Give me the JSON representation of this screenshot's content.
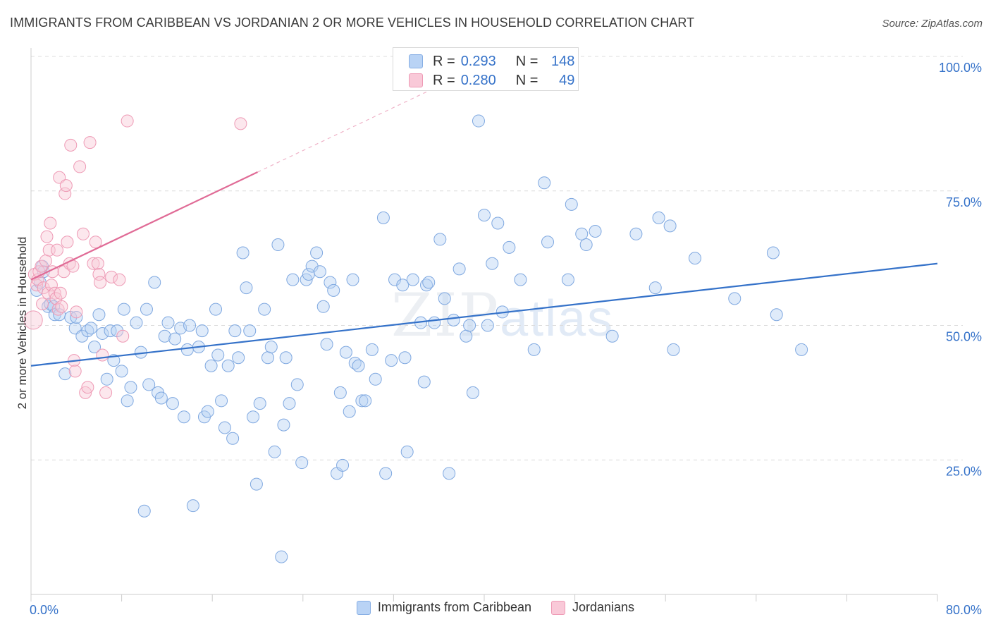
{
  "header": {
    "title": "IMMIGRANTS FROM CARIBBEAN VS JORDANIAN 2 OR MORE VEHICLES IN HOUSEHOLD CORRELATION CHART",
    "source": "Source: ZipAtlas.com"
  },
  "watermark": {
    "zip": "ZIP",
    "atlas": "atlas"
  },
  "stats": {
    "rows": [
      {
        "r_label": "R =",
        "r_value": "0.293",
        "n_label": "N =",
        "n_value": "148",
        "color": "#b9d3f5"
      },
      {
        "r_label": "R =",
        "r_value": "0.280",
        "n_label": "N =",
        "n_value": "49",
        "color": "#f9c9d8"
      }
    ]
  },
  "legend": {
    "blue_label": "Immigrants from Caribbean",
    "pink_label": "Jordanians"
  },
  "chart_data": {
    "type": "scatter",
    "title": "IMMIGRANTS FROM CARIBBEAN VS JORDANIAN 2 OR MORE VEHICLES IN HOUSEHOLD CORRELATION CHART",
    "xlabel": "",
    "ylabel": "2 or more Vehicles in Household",
    "xlim": [
      0,
      80
    ],
    "ylim": [
      0,
      100
    ],
    "x_tick_labels": [
      "0.0%",
      "80.0%"
    ],
    "y_tick_values": [
      25,
      50,
      75,
      100
    ],
    "y_tick_labels": [
      "25.0%",
      "50.0%",
      "75.0%",
      "100.0%"
    ],
    "grid": true,
    "legend_position": "bottom",
    "colors": {
      "blue": "#3572c9",
      "blue_fill": "#b9d3f5",
      "pink": "#e06b96",
      "pink_fill": "#f9c9d8",
      "axis_text": "#3572c9"
    },
    "series": [
      {
        "name": "Immigrants from Caribbean",
        "color": "#3572c9",
        "trend": {
          "x": [
            0,
            80
          ],
          "y": [
            42.5,
            61.5
          ]
        },
        "points": [
          [
            0.5,
            56.5
          ],
          [
            0.8,
            58
          ],
          [
            1,
            61
          ],
          [
            1.1,
            60
          ],
          [
            1.5,
            53.5
          ],
          [
            1.7,
            54
          ],
          [
            2,
            53.5
          ],
          [
            2.1,
            52
          ],
          [
            2.5,
            52
          ],
          [
            3,
            41
          ],
          [
            3.5,
            51.5
          ],
          [
            3.9,
            49.5
          ],
          [
            4,
            51.5
          ],
          [
            4.5,
            48
          ],
          [
            5,
            49
          ],
          [
            5.3,
            49.5
          ],
          [
            5.6,
            46
          ],
          [
            6,
            52
          ],
          [
            6.3,
            48.5
          ],
          [
            6.7,
            40
          ],
          [
            7,
            49
          ],
          [
            7.3,
            43.5
          ],
          [
            7.6,
            49
          ],
          [
            8,
            41.5
          ],
          [
            8.2,
            53
          ],
          [
            8.5,
            36
          ],
          [
            8.8,
            38.5
          ],
          [
            9.3,
            50.5
          ],
          [
            9.7,
            45
          ],
          [
            10,
            15.5
          ],
          [
            10.2,
            53
          ],
          [
            10.4,
            39
          ],
          [
            10.9,
            58
          ],
          [
            11.2,
            37.5
          ],
          [
            11.5,
            36.5
          ],
          [
            11.8,
            48
          ],
          [
            12.1,
            50.5
          ],
          [
            12.5,
            35.5
          ],
          [
            12.7,
            47.5
          ],
          [
            13.2,
            49.5
          ],
          [
            13.5,
            33
          ],
          [
            13.8,
            45.5
          ],
          [
            14,
            50
          ],
          [
            14.3,
            16.5
          ],
          [
            14.8,
            46
          ],
          [
            15.1,
            49
          ],
          [
            15.3,
            33
          ],
          [
            15.6,
            34
          ],
          [
            15.9,
            42.5
          ],
          [
            16.3,
            53
          ],
          [
            16.5,
            44.5
          ],
          [
            16.8,
            36
          ],
          [
            17.1,
            31
          ],
          [
            17.4,
            42.5
          ],
          [
            17.8,
            29
          ],
          [
            18,
            49
          ],
          [
            18.3,
            44
          ],
          [
            18.7,
            63.5
          ],
          [
            19,
            57
          ],
          [
            19.3,
            49
          ],
          [
            19.6,
            33
          ],
          [
            19.9,
            20.5
          ],
          [
            20.2,
            35.5
          ],
          [
            20.6,
            53
          ],
          [
            20.9,
            44
          ],
          [
            21.2,
            46
          ],
          [
            21.5,
            26.5
          ],
          [
            21.8,
            65
          ],
          [
            22.1,
            7
          ],
          [
            22.3,
            31.5
          ],
          [
            22.5,
            44
          ],
          [
            22.8,
            35.5
          ],
          [
            23.1,
            58.5
          ],
          [
            23.5,
            39
          ],
          [
            23.9,
            24.5
          ],
          [
            24.3,
            58.5
          ],
          [
            24.5,
            59.5
          ],
          [
            24.8,
            61
          ],
          [
            25.2,
            63.5
          ],
          [
            25.5,
            60
          ],
          [
            25.8,
            53.5
          ],
          [
            26.1,
            46.5
          ],
          [
            26.4,
            58
          ],
          [
            26.7,
            56.5
          ],
          [
            27,
            22.5
          ],
          [
            27.3,
            37.5
          ],
          [
            27.5,
            24
          ],
          [
            27.8,
            45
          ],
          [
            28.1,
            34
          ],
          [
            28.4,
            58.5
          ],
          [
            28.6,
            43
          ],
          [
            28.9,
            42.5
          ],
          [
            29.2,
            36
          ],
          [
            29.5,
            36
          ],
          [
            30.1,
            45.5
          ],
          [
            30.4,
            40
          ],
          [
            31.1,
            70
          ],
          [
            31.3,
            22.5
          ],
          [
            31.8,
            43.5
          ],
          [
            32.1,
            58.5
          ],
          [
            32.8,
            57.5
          ],
          [
            33,
            44
          ],
          [
            33.2,
            26.5
          ],
          [
            33.7,
            58.5
          ],
          [
            34.4,
            50.5
          ],
          [
            34.7,
            39.5
          ],
          [
            34.9,
            57.5
          ],
          [
            35.1,
            58
          ],
          [
            35.6,
            50.5
          ],
          [
            36.1,
            66
          ],
          [
            36.5,
            55
          ],
          [
            36.9,
            22.5
          ],
          [
            37.3,
            51
          ],
          [
            37.8,
            60.5
          ],
          [
            38.4,
            48
          ],
          [
            38.7,
            50
          ],
          [
            39,
            37.5
          ],
          [
            39.5,
            88
          ],
          [
            40,
            70.5
          ],
          [
            40.3,
            50
          ],
          [
            40.7,
            61.5
          ],
          [
            41.2,
            69
          ],
          [
            41.6,
            52.5
          ],
          [
            42.2,
            64.5
          ],
          [
            43.2,
            58.5
          ],
          [
            44.4,
            45.5
          ],
          [
            45.3,
            76.5
          ],
          [
            45.6,
            65.5
          ],
          [
            47.4,
            58.5
          ],
          [
            47.7,
            72.5
          ],
          [
            48.6,
            67
          ],
          [
            49,
            65
          ],
          [
            49.8,
            67.5
          ],
          [
            51.3,
            48
          ],
          [
            53.4,
            67
          ],
          [
            55.1,
            57
          ],
          [
            55.4,
            70
          ],
          [
            56.4,
            68.5
          ],
          [
            56.7,
            45.5
          ],
          [
            58.6,
            62.5
          ],
          [
            62.1,
            55
          ],
          [
            65.5,
            63.5
          ],
          [
            65.8,
            52
          ],
          [
            68,
            45.5
          ]
        ]
      },
      {
        "name": "Jordanians",
        "color": "#e06b96",
        "trend": {
          "x": [
            0,
            20
          ],
          "y": [
            58.5,
            78.5
          ]
        },
        "trend_extension": {
          "x": [
            20,
            36
          ],
          "y": [
            78.5,
            94.5
          ]
        },
        "points": [
          [
            0.3,
            59.5
          ],
          [
            0.5,
            57.5
          ],
          [
            0.6,
            58.5
          ],
          [
            0.7,
            60
          ],
          [
            0.9,
            61
          ],
          [
            1,
            54
          ],
          [
            1.1,
            57
          ],
          [
            1.3,
            62
          ],
          [
            1.4,
            66.5
          ],
          [
            1.5,
            56
          ],
          [
            1.6,
            64
          ],
          [
            1.7,
            69
          ],
          [
            1.8,
            57.5
          ],
          [
            1.9,
            60
          ],
          [
            2.1,
            56
          ],
          [
            2.2,
            55
          ],
          [
            2.3,
            64
          ],
          [
            2.4,
            53
          ],
          [
            2.5,
            77.5
          ],
          [
            2.6,
            56
          ],
          [
            2.7,
            53.5
          ],
          [
            2.9,
            60
          ],
          [
            3,
            74.5
          ],
          [
            3.1,
            76
          ],
          [
            3.2,
            65.5
          ],
          [
            3.4,
            61.5
          ],
          [
            3.5,
            83.5
          ],
          [
            3.7,
            61
          ],
          [
            3.8,
            43.5
          ],
          [
            3.9,
            41.5
          ],
          [
            4,
            52.5
          ],
          [
            4.3,
            79.5
          ],
          [
            4.6,
            67
          ],
          [
            4.8,
            37.5
          ],
          [
            5,
            38.5
          ],
          [
            5.2,
            84
          ],
          [
            5.5,
            61.5
          ],
          [
            5.7,
            65.5
          ],
          [
            5.9,
            61.5
          ],
          [
            6,
            59.5
          ],
          [
            6.1,
            58
          ],
          [
            6.3,
            44.5
          ],
          [
            6.6,
            37.5
          ],
          [
            7.1,
            59
          ],
          [
            7.8,
            58.5
          ],
          [
            8.1,
            48
          ],
          [
            8.5,
            88
          ],
          [
            18.5,
            87.5
          ],
          [
            0.2,
            51
          ]
        ]
      }
    ]
  }
}
